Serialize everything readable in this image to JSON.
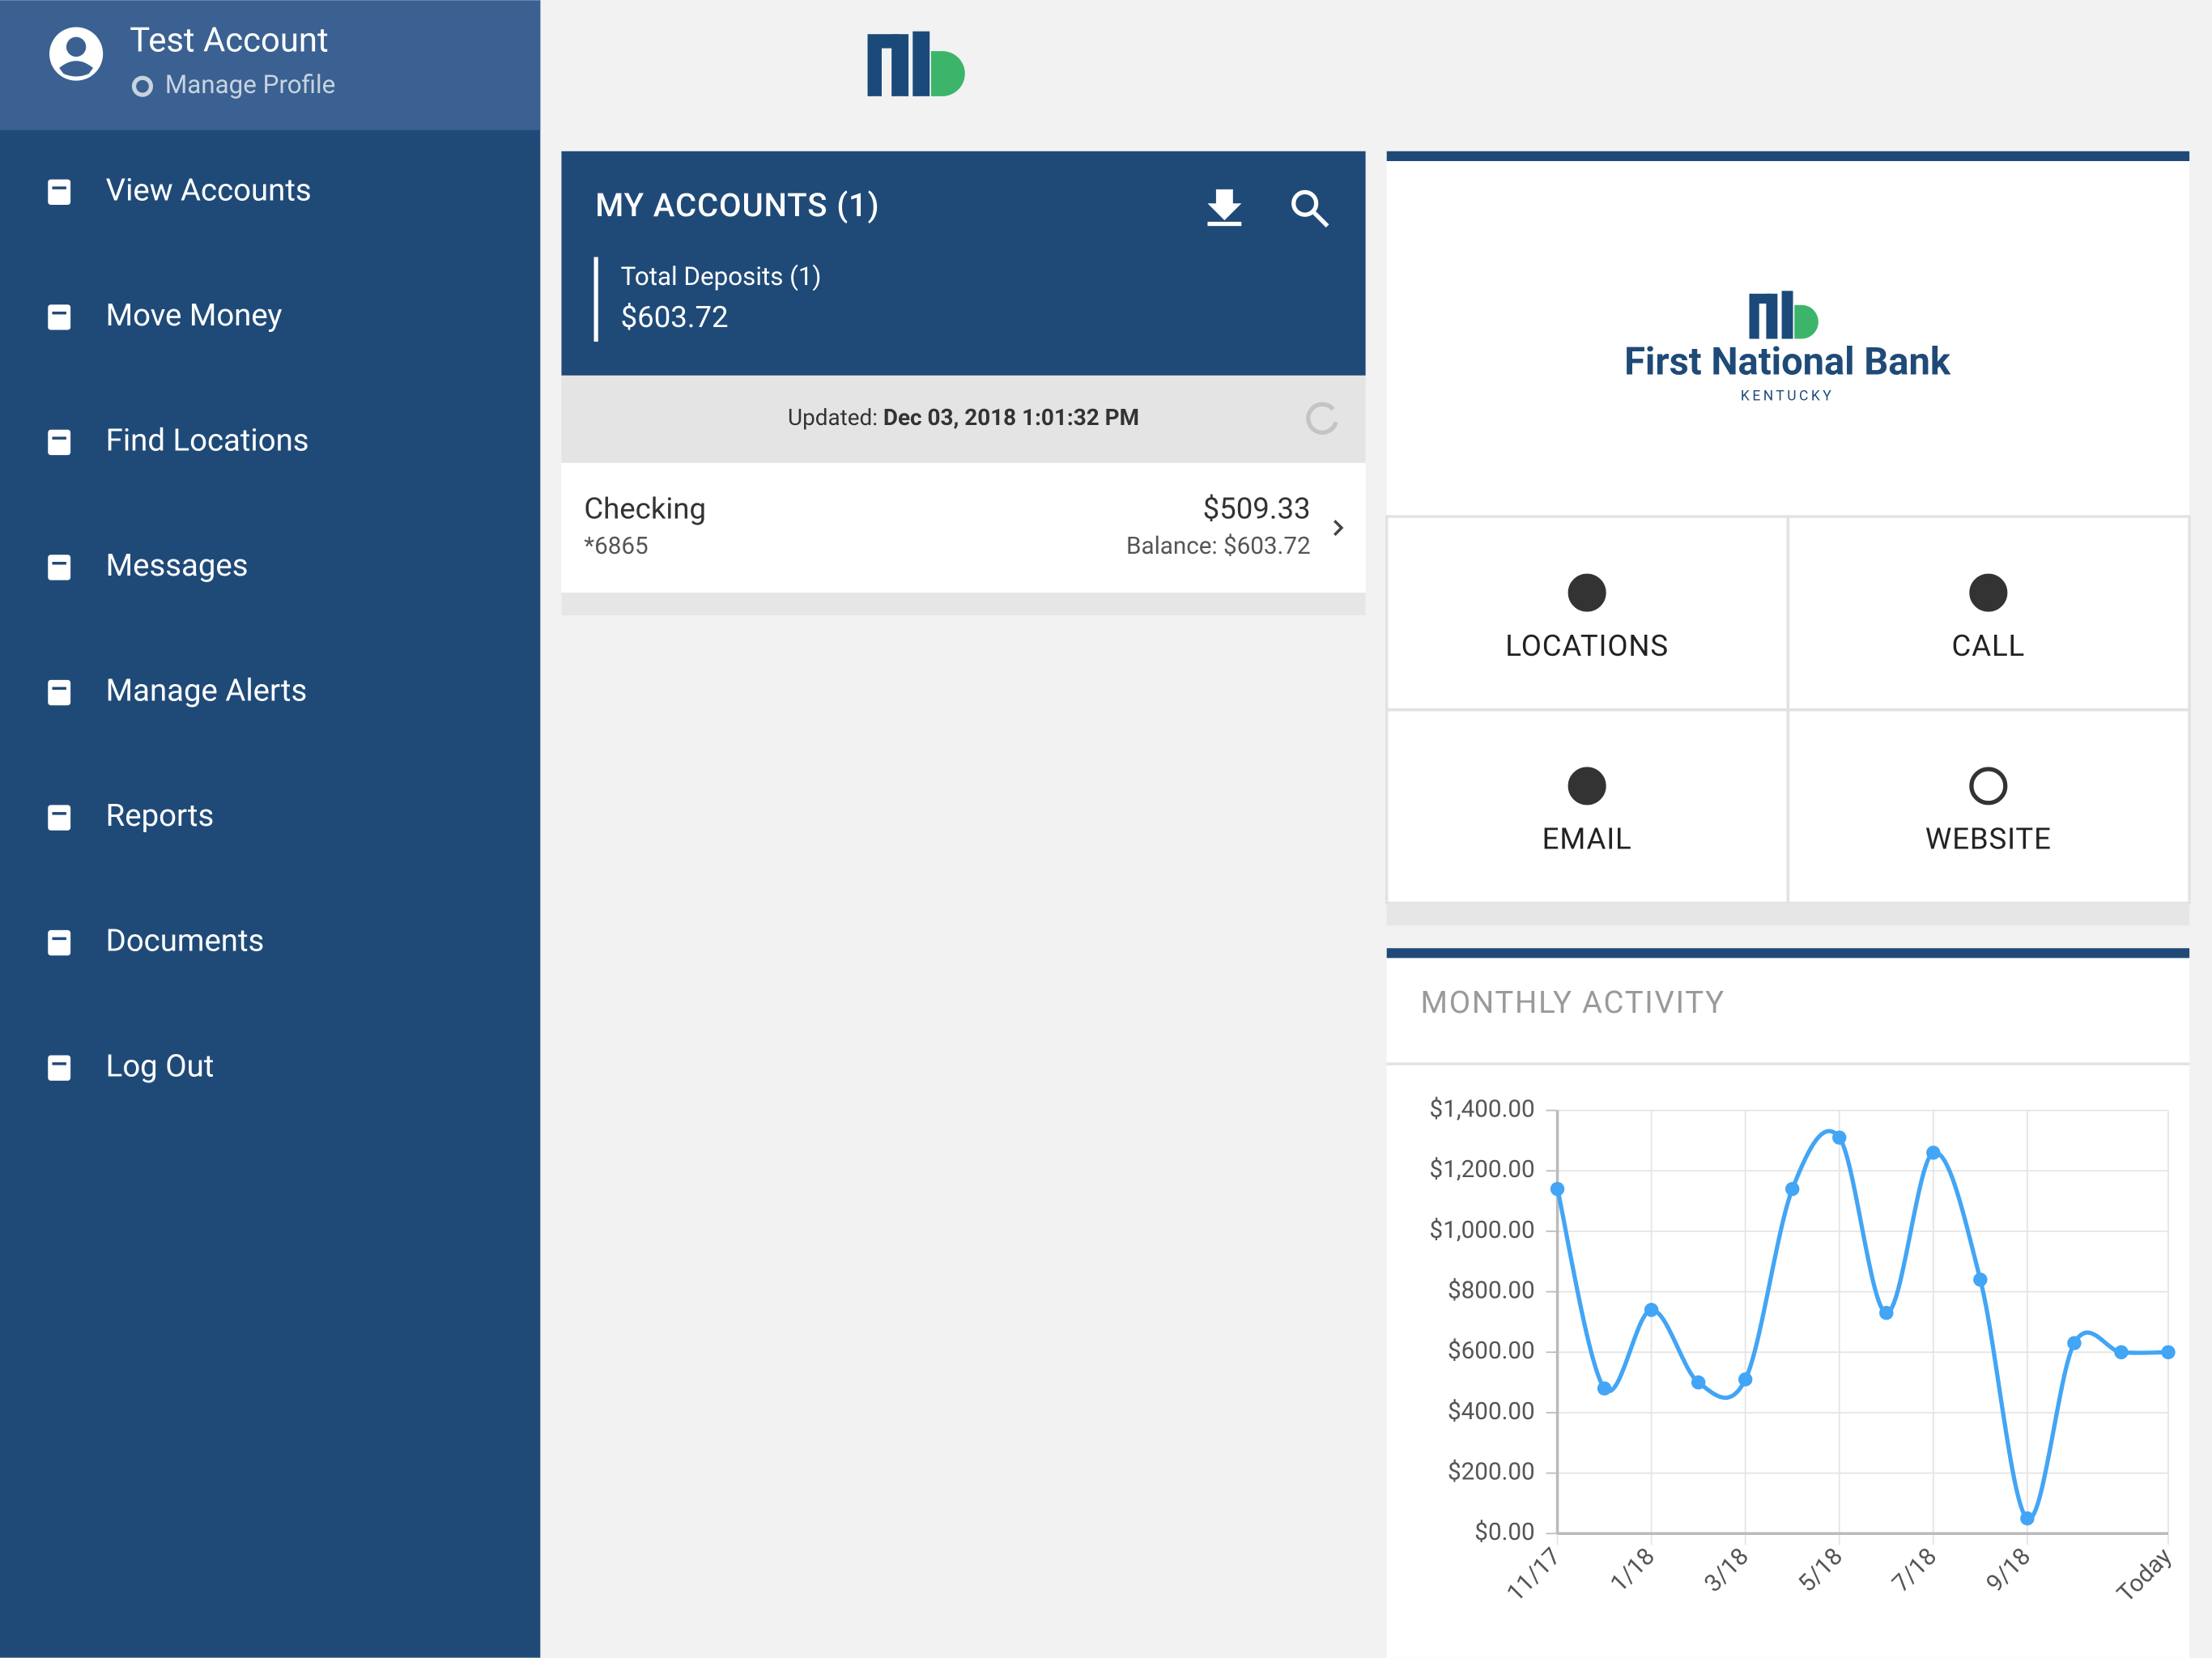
{
  "profile": {
    "name": "Test Account",
    "link": "Manage Profile"
  },
  "menu": [
    "View Accounts",
    "Move Money",
    "Find Locations",
    "Messages",
    "Manage Alerts",
    "Reports",
    "Documents",
    "Log Out"
  ],
  "accounts": {
    "title": "MY ACCOUNTS (1)",
    "total_label": "Total Deposits (1)",
    "total": "$603.72",
    "updated_label": "Updated:",
    "updated": "Dec 03, 2018 1:01:32 PM",
    "rows": [
      {
        "name": "Checking",
        "number": "*6865",
        "amount": "$509.33",
        "balance": "Balance: $603.72"
      }
    ]
  },
  "bank": {
    "name": "First National Bank",
    "state": "KENTUCKY",
    "actions": [
      "LOCATIONS",
      "CALL",
      "EMAIL",
      "WEBSITE"
    ]
  },
  "chart_data": {
    "type": "line",
    "title": "MONTHLY ACTIVITY",
    "color": "#42a5f5",
    "grid": true,
    "categories": [
      "11/17",
      null,
      "1/18",
      null,
      "3/18",
      null,
      "5/18",
      null,
      "7/18",
      null,
      "9/18",
      null,
      null,
      "Today"
    ],
    "values": [
      1140,
      480,
      740,
      500,
      510,
      1140,
      1310,
      730,
      1260,
      840,
      50,
      630,
      600,
      600
    ],
    "ylim": [
      0,
      1400
    ],
    "yticks": [
      {
        "value": 0,
        "label": "$0.00"
      },
      {
        "value": 200,
        "label": "$200.00"
      },
      {
        "value": 400,
        "label": "$400.00"
      },
      {
        "value": 600,
        "label": "$600.00"
      },
      {
        "value": 800,
        "label": "$800.00"
      },
      {
        "value": 1000,
        "label": "$1,000.00"
      },
      {
        "value": 1200,
        "label": "$1,200.00"
      },
      {
        "value": 1400,
        "label": "$1,400.00"
      }
    ]
  }
}
